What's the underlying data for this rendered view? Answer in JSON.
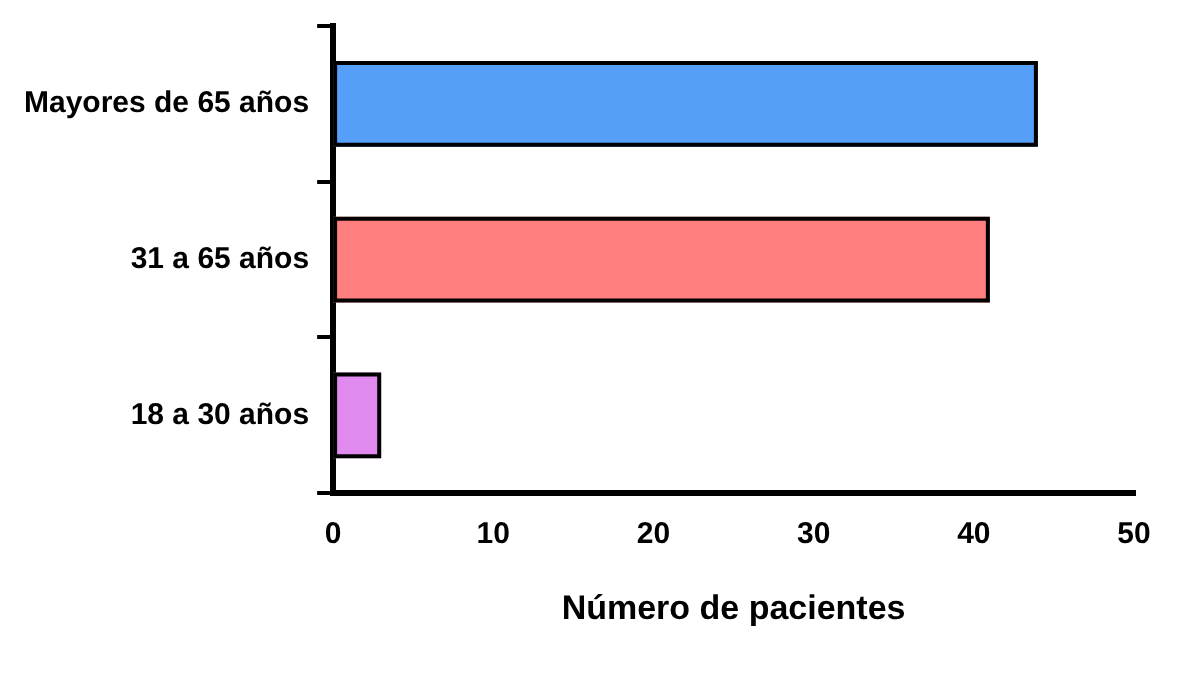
{
  "chart_data": {
    "type": "bar",
    "orientation": "horizontal",
    "xlabel": "Número de pacientes",
    "categories": [
      "Mayores de 65 años",
      "31 a 65 años",
      "18 a 30 años"
    ],
    "values": [
      44,
      41,
      3
    ],
    "colors": [
      "#559ff8",
      "#ff7f7f",
      "#e08af0"
    ],
    "xlim": [
      0,
      50
    ],
    "xticks": [
      0,
      10,
      20,
      30,
      40,
      50
    ],
    "grid": false,
    "legend": false
  }
}
